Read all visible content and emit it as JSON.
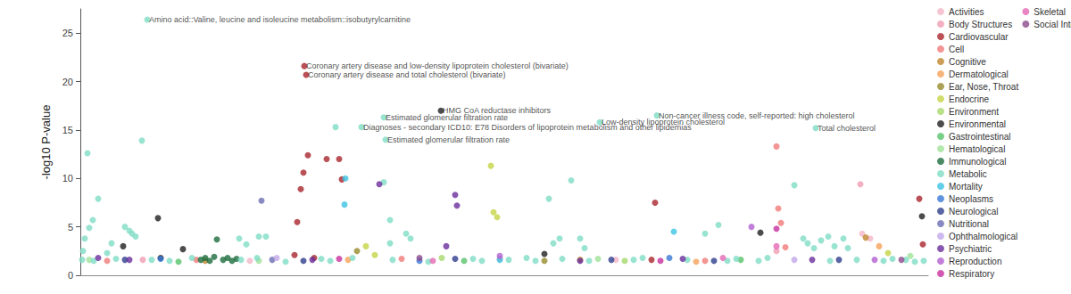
{
  "chart_data": {
    "type": "scatter",
    "y_label": "-log10 P-value",
    "xlim": [
      0,
      950
    ],
    "ylim": [
      0,
      27.5
    ],
    "yticks": [
      0,
      5,
      10,
      15,
      20,
      25
    ],
    "tick_labels": "y",
    "grid": false,
    "legend": "right",
    "marker": "circle",
    "series": [
      {
        "name": "Activities",
        "color": "#f4b6c8",
        "values": [
          [
            876,
            4.3
          ],
          [
            885,
            3.8
          ],
          [
            190,
            1.5
          ],
          [
            600,
            1.6
          ]
        ]
      },
      {
        "name": "Body Structures",
        "color": "#f19cb4",
        "values": [
          [
            874,
            9.4
          ],
          [
            780,
            2.5
          ],
          [
            70,
            1.6
          ],
          [
            470,
            1.7
          ]
        ]
      },
      {
        "name": "Cardiovascular",
        "color": "#a8262c",
        "values": [
          [
            251,
            21.6
          ],
          [
            253,
            20.7
          ],
          [
            255,
            12.4
          ],
          [
            250,
            10.6
          ],
          [
            247,
            8.9
          ],
          [
            243,
            5.5
          ],
          [
            276,
            12.0
          ],
          [
            290,
            12.0
          ],
          [
            293,
            9.9
          ],
          [
            644,
            7.5
          ],
          [
            940,
            7.9
          ],
          [
            944,
            3.2
          ],
          [
            240,
            2.1
          ],
          [
            262,
            1.8
          ],
          [
            640,
            1.6
          ]
        ]
      },
      {
        "name": "Cell",
        "color": "#f07a78",
        "values": [
          [
            780,
            13.3
          ],
          [
            782,
            6.9
          ],
          [
            785,
            5.4
          ],
          [
            790,
            2.9
          ],
          [
            30,
            1.5
          ],
          [
            130,
            1.6
          ],
          [
            360,
            1.7
          ],
          [
            700,
            1.5
          ]
        ]
      },
      {
        "name": "Cognitive",
        "color": "#c0862e",
        "values": [
          [
            140,
            1.5
          ],
          [
            560,
            1.6
          ],
          [
            880,
            3.9
          ]
        ]
      },
      {
        "name": "Dermatological",
        "color": "#f5a25a",
        "values": [
          [
            300,
            1.6
          ],
          [
            690,
            1.4
          ],
          [
            895,
            3.0
          ]
        ]
      },
      {
        "name": "Ear, Nose, Throat",
        "color": "#968b2c",
        "values": [
          [
            310,
            2.5
          ],
          [
            520,
            1.5
          ]
        ]
      },
      {
        "name": "Endocrine",
        "color": "#c5d546",
        "values": [
          [
            460,
            11.3
          ],
          [
            463,
            6.5
          ],
          [
            467,
            6.0
          ],
          [
            320,
            3.0
          ],
          [
            330,
            2.1
          ],
          [
            905,
            2.3
          ]
        ]
      },
      {
        "name": "Environment",
        "color": "#a5d86a",
        "values": [
          [
            405,
            1.8
          ],
          [
            610,
            1.5
          ]
        ]
      },
      {
        "name": "Environmental",
        "color": "#1f1f1f",
        "values": [
          [
            404,
            17.0
          ],
          [
            87,
            5.9
          ],
          [
            48,
            3.0
          ],
          [
            762,
            4.4
          ],
          [
            943,
            6.1
          ],
          [
            90,
            1.8
          ],
          [
            115,
            2.7
          ],
          [
            520,
            2.2
          ]
        ]
      },
      {
        "name": "Gastrointestinal",
        "color": "#58c26a",
        "values": [
          [
            110,
            1.4
          ],
          [
            430,
            1.5
          ],
          [
            740,
            1.6
          ]
        ]
      },
      {
        "name": "Hematological",
        "color": "#9fe29a",
        "values": [
          [
            10,
            1.6
          ],
          [
            200,
            1.5
          ],
          [
            580,
            1.7
          ],
          [
            930,
            2.0
          ]
        ]
      },
      {
        "name": "Immunological",
        "color": "#1c6b3c",
        "values": [
          [
            153,
            3.7
          ],
          [
            135,
            1.6
          ],
          [
            140,
            1.8
          ],
          [
            145,
            1.5
          ],
          [
            150,
            1.9
          ],
          [
            160,
            1.6
          ],
          [
            165,
            1.8
          ],
          [
            170,
            1.5
          ],
          [
            175,
            1.7
          ]
        ]
      },
      {
        "name": "Metabolic",
        "color": "#7fdcc6",
        "values": [
          [
            75,
            26.4
          ],
          [
            69,
            13.9
          ],
          [
            8,
            12.6
          ],
          [
            20,
            7.9
          ],
          [
            14,
            5.7
          ],
          [
            10,
            4.9
          ],
          [
            5,
            3.8
          ],
          [
            3,
            2.5
          ],
          [
            2,
            1.6
          ],
          [
            50,
            5.0
          ],
          [
            58,
            4.3
          ],
          [
            62,
            4.0
          ],
          [
            55,
            4.6
          ],
          [
            35,
            3.3
          ],
          [
            30,
            2.3
          ],
          [
            178,
            3.8
          ],
          [
            186,
            3.2
          ],
          [
            200,
            4.0
          ],
          [
            208,
            4.0
          ],
          [
            198,
            1.8
          ],
          [
            286,
            15.3
          ],
          [
            315,
            15.3
          ],
          [
            340,
            16.3
          ],
          [
            342,
            14.0
          ],
          [
            340,
            9.6
          ],
          [
            347,
            5.7
          ],
          [
            347,
            3.3
          ],
          [
            365,
            4.3
          ],
          [
            370,
            3.8
          ],
          [
            525,
            7.9
          ],
          [
            550,
            9.8
          ],
          [
            537,
            3.8
          ],
          [
            530,
            3.3
          ],
          [
            560,
            3.8
          ],
          [
            565,
            2.8
          ],
          [
            582,
            15.8
          ],
          [
            646,
            16.5
          ],
          [
            715,
            5.2
          ],
          [
            700,
            4.3
          ],
          [
            800,
            9.3
          ],
          [
            824,
            15.2
          ],
          [
            810,
            3.8
          ],
          [
            815,
            3.3
          ],
          [
            822,
            2.8
          ],
          [
            830,
            3.6
          ],
          [
            838,
            4.0
          ],
          [
            845,
            3.0
          ],
          [
            855,
            3.8
          ],
          [
            860,
            2.8
          ],
          [
            15,
            1.5
          ],
          [
            40,
            1.7
          ],
          [
            80,
            1.6
          ],
          [
            100,
            1.5
          ],
          [
            125,
            1.8
          ],
          [
            180,
            1.6
          ],
          [
            230,
            1.4
          ],
          [
            270,
            1.7
          ],
          [
            280,
            1.5
          ],
          [
            305,
            1.8
          ],
          [
            350,
            1.6
          ],
          [
            390,
            1.4
          ],
          [
            440,
            1.7
          ],
          [
            450,
            1.5
          ],
          [
            480,
            1.6
          ],
          [
            500,
            1.8
          ],
          [
            510,
            1.5
          ],
          [
            540,
            1.7
          ],
          [
            570,
            1.5
          ],
          [
            620,
            1.6
          ],
          [
            630,
            1.8
          ],
          [
            680,
            1.6
          ],
          [
            725,
            1.5
          ],
          [
            735,
            1.7
          ],
          [
            760,
            1.5
          ],
          [
            770,
            1.8
          ],
          [
            840,
            1.5
          ],
          [
            870,
            1.6
          ],
          [
            900,
            1.5
          ],
          [
            910,
            1.7
          ],
          [
            925,
            1.6
          ],
          [
            935,
            1.4
          ],
          [
            945,
            1.5
          ]
        ]
      },
      {
        "name": "Mortality",
        "color": "#3cc3e2",
        "values": [
          [
            297,
            10.0
          ],
          [
            296,
            7.3
          ],
          [
            665,
            4.5
          ],
          [
            470,
            1.6
          ]
        ]
      },
      {
        "name": "Neoplasms",
        "color": "#3778d4",
        "values": [
          [
            90,
            1.7
          ],
          [
            380,
            1.5
          ],
          [
            660,
            1.8
          ]
        ]
      },
      {
        "name": "Neurological",
        "color": "#2e3d8c",
        "values": [
          [
            50,
            1.6
          ],
          [
            250,
            1.5
          ],
          [
            420,
            1.7
          ],
          [
            595,
            1.6
          ],
          [
            710,
            1.5
          ],
          [
            850,
            1.6
          ]
        ]
      },
      {
        "name": "Nutritional",
        "color": "#6d6db4",
        "values": [
          [
            203,
            7.7
          ],
          [
            215,
            1.6
          ]
        ]
      },
      {
        "name": "Ophthalmological",
        "color": "#c2a6ea",
        "values": [
          [
            220,
            1.8
          ],
          [
            800,
            1.6
          ]
        ]
      },
      {
        "name": "Psychiatric",
        "color": "#6a2e9c",
        "values": [
          [
            420,
            8.3
          ],
          [
            422,
            7.2
          ],
          [
            335,
            9.4
          ],
          [
            410,
            3.0
          ],
          [
            20,
            1.8
          ],
          [
            55,
            1.6
          ],
          [
            260,
            1.6
          ],
          [
            560,
            1.5
          ],
          [
            675,
            1.7
          ],
          [
            820,
            1.6
          ]
        ]
      },
      {
        "name": "Reproduction",
        "color": "#b25fd1",
        "values": [
          [
            752,
            5.0
          ],
          [
            470,
            2.0
          ],
          [
            890,
            1.6
          ]
        ]
      },
      {
        "name": "Respiratory",
        "color": "#c62f9f",
        "values": [
          [
            780,
            4.8
          ],
          [
            290,
            1.7
          ],
          [
            650,
            1.5
          ]
        ]
      },
      {
        "name": "Skeletal",
        "color": "#e468b4",
        "values": [
          [
            780,
            3.0
          ],
          [
            395,
            1.5
          ],
          [
            720,
            1.8
          ]
        ]
      },
      {
        "name": "Social Interactions",
        "color": "#8c4a8c",
        "values": [
          [
            380,
            1.8
          ],
          [
            920,
            1.6
          ]
        ]
      }
    ],
    "annotations": [
      {
        "text": "Amino acid::Valine, leucine and isoleucine metabolism::isobutyrylcarnitine",
        "x": 75,
        "y": 26.4
      },
      {
        "text": "Coronary artery disease and low-density lipoprotein cholesterol (bivariate)",
        "x": 251,
        "y": 21.6
      },
      {
        "text": "Coronary artery disease and total cholesterol (bivariate)",
        "x": 253,
        "y": 20.7
      },
      {
        "text": "HMG CoA reductase inhibitors",
        "x": 404,
        "y": 17.0
      },
      {
        "text": "Non-cancer illness code, self-reported: high cholesterol",
        "x": 646,
        "y": 16.5
      },
      {
        "text": "Estimated glomerular filtration rate",
        "x": 340,
        "y": 16.3
      },
      {
        "text": "Low-density lipoprotein cholesterol",
        "x": 582,
        "y": 15.8
      },
      {
        "text": "Diagnoses - secondary ICD10: E78 Disorders of lipoprotein metabolism and other lipidemias",
        "x": 315,
        "y": 15.3
      },
      {
        "text": "Total cholesterol",
        "x": 824,
        "y": 15.2
      },
      {
        "text": "Estimated glomerular filtration rate",
        "x": 342,
        "y": 14.0
      }
    ]
  }
}
